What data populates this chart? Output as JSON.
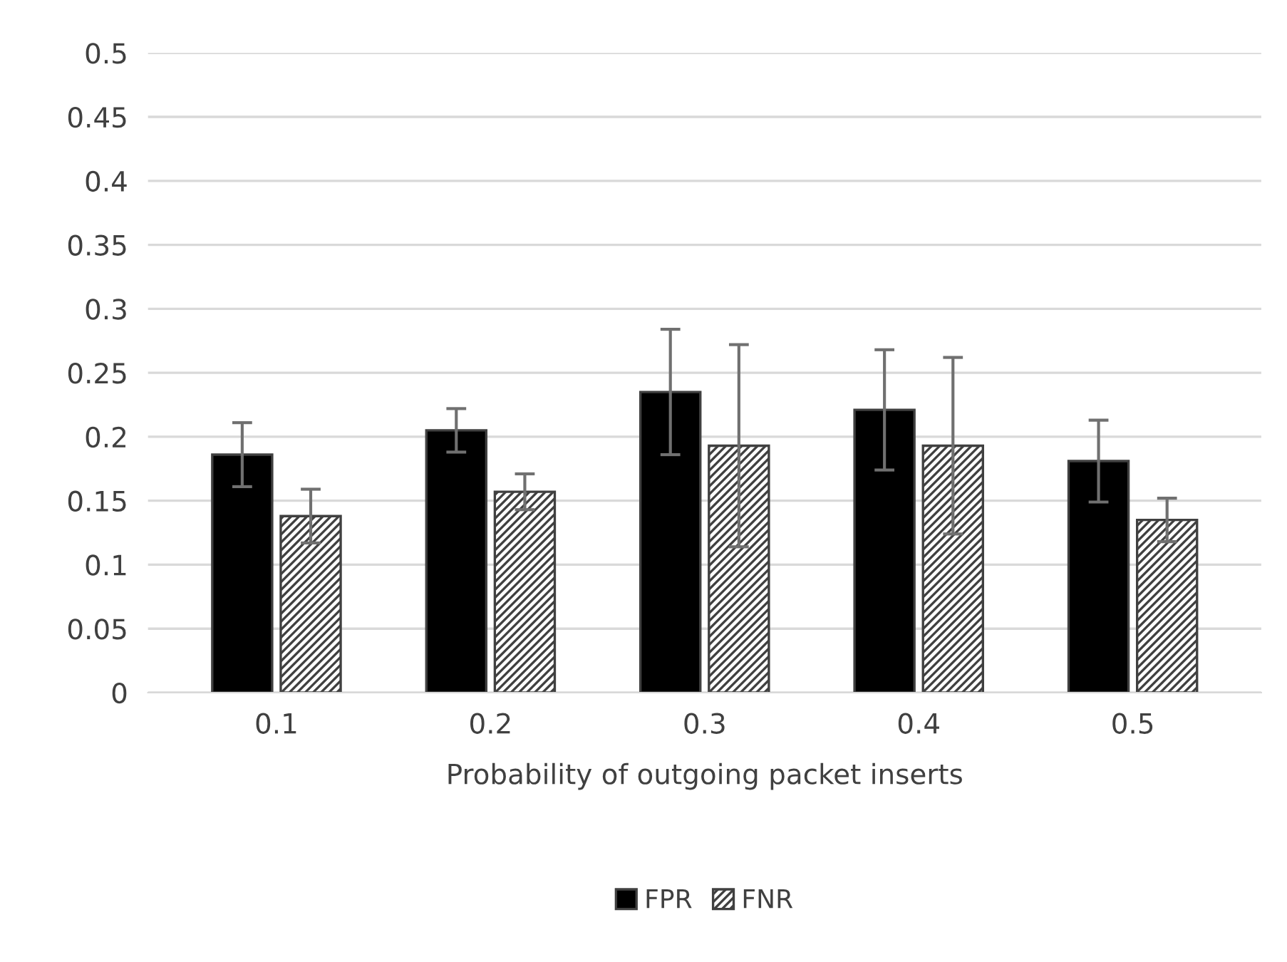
{
  "chart_data": {
    "type": "bar",
    "xlabel": "Probability of outgoing packet inserts",
    "categories": [
      "0.1",
      "0.2",
      "0.3",
      "0.4",
      "0.5"
    ],
    "series": [
      {
        "name": "FPR",
        "color": "#000000",
        "values": [
          0.186,
          0.205,
          0.235,
          0.221,
          0.181
        ],
        "errors": [
          0.025,
          0.017,
          0.049,
          0.047,
          0.032
        ]
      },
      {
        "name": "FNR",
        "color": "#404040",
        "values": [
          0.138,
          0.157,
          0.193,
          0.193,
          0.135
        ],
        "errors": [
          0.021,
          0.014,
          0.079,
          0.069,
          0.017
        ]
      }
    ],
    "ylim": [
      0,
      0.5
    ],
    "yticks": [
      0,
      0.05,
      0.1,
      0.15,
      0.2,
      0.25,
      0.3,
      0.35,
      0.4,
      0.45,
      0.5
    ],
    "grid": "y",
    "legend": "bottom"
  }
}
